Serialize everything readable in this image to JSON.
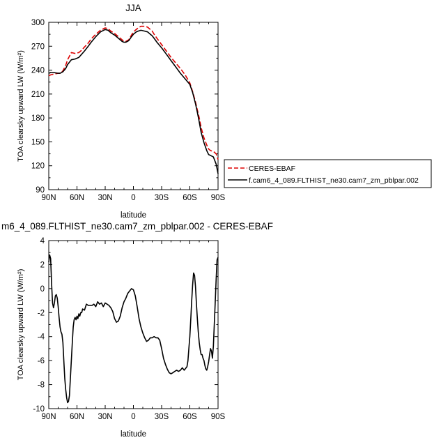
{
  "chart_data": [
    {
      "type": "line",
      "title": "JJA",
      "xlabel": "latitude",
      "ylabel": "TOA clearsky upward LW (W/m²)",
      "xlim": [
        90,
        -90
      ],
      "ylim": [
        90,
        300
      ],
      "x_ticks": [
        {
          "value": 90,
          "label": "90N"
        },
        {
          "value": 60,
          "label": "60N"
        },
        {
          "value": 30,
          "label": "30N"
        },
        {
          "value": 0,
          "label": "0"
        },
        {
          "value": -30,
          "label": "30S"
        },
        {
          "value": -60,
          "label": "60S"
        },
        {
          "value": -90,
          "label": "90S"
        }
      ],
      "y_ticks": [
        90,
        120,
        150,
        180,
        210,
        240,
        270,
        300
      ],
      "legend_position": "right",
      "series": [
        {
          "name": "CERES-EBAF",
          "color": "#dd0000",
          "dash": "dashed",
          "x": [
            90,
            88,
            85,
            80,
            78,
            75,
            72,
            70,
            66,
            62,
            58,
            55,
            52,
            48,
            45,
            40,
            35,
            30,
            27,
            24,
            20,
            15,
            12,
            10,
            8,
            5,
            2,
            0,
            -3,
            -5,
            -8,
            -12,
            -15,
            -18,
            -20,
            -22,
            -25,
            -30,
            -35,
            -40,
            -45,
            -50,
            -55,
            -60,
            -63,
            -66,
            -68,
            -70,
            -72,
            -75,
            -78,
            -80,
            -82,
            -85,
            -88,
            -90
          ],
          "y": [
            233,
            234,
            235,
            236,
            236,
            239,
            246,
            253,
            262,
            261,
            262,
            265,
            269,
            274,
            279,
            285,
            290,
            293,
            292,
            289,
            286,
            281,
            278,
            276,
            276,
            278,
            284,
            288,
            291,
            293,
            295,
            295,
            294,
            291,
            289,
            285,
            280,
            272,
            264,
            256,
            249,
            242,
            234,
            224,
            213,
            200,
            190,
            180,
            168,
            155,
            146,
            141,
            139,
            138,
            135,
            128
          ]
        },
        {
          "name": "f.cam6_4_089.FLTHIST_ne30.cam7_zm_pblpar.002",
          "color": "#000000",
          "dash": "solid",
          "x": [
            90,
            88,
            85,
            80,
            78,
            75,
            72,
            70,
            66,
            62,
            58,
            55,
            52,
            48,
            45,
            40,
            35,
            30,
            27,
            24,
            20,
            15,
            12,
            10,
            8,
            5,
            2,
            0,
            -3,
            -5,
            -8,
            -12,
            -15,
            -18,
            -20,
            -22,
            -25,
            -30,
            -35,
            -40,
            -45,
            -50,
            -55,
            -60,
            -63,
            -66,
            -68,
            -70,
            -72,
            -75,
            -78,
            -80,
            -82,
            -85,
            -88,
            -90
          ],
          "y": [
            236,
            237,
            237,
            236,
            236,
            238,
            242,
            247,
            253,
            254,
            256,
            260,
            264,
            270,
            275,
            282,
            288,
            291,
            290,
            287,
            284,
            279,
            276,
            275,
            275,
            277,
            282,
            285,
            288,
            289,
            290,
            289,
            288,
            285,
            283,
            280,
            275,
            268,
            260,
            252,
            244,
            236,
            229,
            222,
            212,
            198,
            187,
            175,
            162,
            149,
            139,
            134,
            133,
            131,
            122,
            110
          ]
        }
      ]
    },
    {
      "type": "line",
      "title": "m6_4_089.FLTHIST_ne30.cam7_zm_pblpar.002 - CERES-EBAF",
      "xlabel": "latitude",
      "ylabel": "TOA clearsky upward LW (W/m²)",
      "xlim": [
        90,
        -90
      ],
      "ylim": [
        -10,
        4
      ],
      "x_ticks": [
        {
          "value": 90,
          "label": "90N"
        },
        {
          "value": 60,
          "label": "60N"
        },
        {
          "value": 30,
          "label": "30N"
        },
        {
          "value": 0,
          "label": "0"
        },
        {
          "value": -30,
          "label": "30S"
        },
        {
          "value": -60,
          "label": "60S"
        },
        {
          "value": -90,
          "label": "90S"
        }
      ],
      "y_ticks": [
        -10,
        -8,
        -6,
        -4,
        -2,
        0,
        2,
        4
      ],
      "series": [
        {
          "color": "#000000",
          "dash": "solid",
          "x": [
            90,
            89,
            88,
            87,
            86,
            85,
            84,
            83,
            82,
            81,
            80,
            79,
            78,
            77,
            76,
            75,
            74,
            73,
            72,
            71,
            70,
            69,
            68,
            67,
            66,
            65,
            64,
            63,
            62,
            61,
            60,
            59,
            58,
            57,
            56,
            55,
            54,
            52,
            50,
            48,
            46,
            44,
            42,
            40,
            38,
            36,
            34,
            32,
            30,
            28,
            26,
            24,
            22,
            20,
            18,
            16,
            14,
            12,
            10,
            8,
            6,
            4,
            2,
            0,
            -2,
            -4,
            -6,
            -8,
            -10,
            -12,
            -14,
            -16,
            -18,
            -20,
            -22,
            -24,
            -26,
            -28,
            -30,
            -32,
            -34,
            -36,
            -38,
            -40,
            -42,
            -44,
            -46,
            -48,
            -50,
            -52,
            -54,
            -56,
            -57,
            -58,
            -59,
            -60,
            -61,
            -62,
            -63,
            -64,
            -65,
            -66,
            -67,
            -68,
            -69,
            -70,
            -71,
            -72,
            -73,
            -74,
            -75,
            -76,
            -77,
            -78,
            -79,
            -80,
            -81,
            -82,
            -83,
            -84,
            -85,
            -86,
            -87,
            -88,
            -89,
            -90
          ],
          "y": [
            2.2,
            2.8,
            2.5,
            0.5,
            -1.2,
            -1.6,
            -1.2,
            -0.6,
            -0.5,
            -0.8,
            -1.5,
            -2.4,
            -3.2,
            -3.6,
            -3.8,
            -4.5,
            -6.0,
            -7.5,
            -8.4,
            -9.1,
            -9.5,
            -9.4,
            -8.9,
            -7.5,
            -6.0,
            -4.5,
            -3.2,
            -2.6,
            -2.4,
            -2.6,
            -2.3,
            -2.5,
            -2.1,
            -2.3,
            -2.0,
            -2.0,
            -1.7,
            -1.8,
            -1.3,
            -1.4,
            -1.4,
            -1.4,
            -1.3,
            -1.5,
            -1.1,
            -1.3,
            -1.2,
            -1.5,
            -1.2,
            -1.3,
            -1.4,
            -1.6,
            -1.9,
            -2.5,
            -2.8,
            -2.7,
            -2.3,
            -1.6,
            -1.1,
            -0.8,
            -0.4,
            -0.2,
            0.0,
            -0.1,
            -0.6,
            -1.5,
            -2.5,
            -3.2,
            -3.7,
            -4.1,
            -4.4,
            -4.3,
            -4.1,
            -4.1,
            -4.0,
            -4.1,
            -4.1,
            -4.3,
            -5.0,
            -5.8,
            -6.3,
            -6.7,
            -7.0,
            -7.1,
            -7.0,
            -6.9,
            -6.8,
            -6.9,
            -6.8,
            -6.6,
            -6.8,
            -6.6,
            -6.5,
            -6.0,
            -5.0,
            -4.0,
            -2.5,
            -1.0,
            0.3,
            1.3,
            1.1,
            0.2,
            -1.2,
            -2.5,
            -3.6,
            -4.5,
            -5.1,
            -5.5,
            -5.5,
            -5.8,
            -6.0,
            -6.4,
            -6.7,
            -6.8,
            -6.5,
            -6.1,
            -5.5,
            -5.0,
            -5.2,
            -5.8,
            -4.8,
            -3.0,
            -1.2,
            0.8,
            2.4,
            2.6
          ]
        }
      ]
    }
  ]
}
